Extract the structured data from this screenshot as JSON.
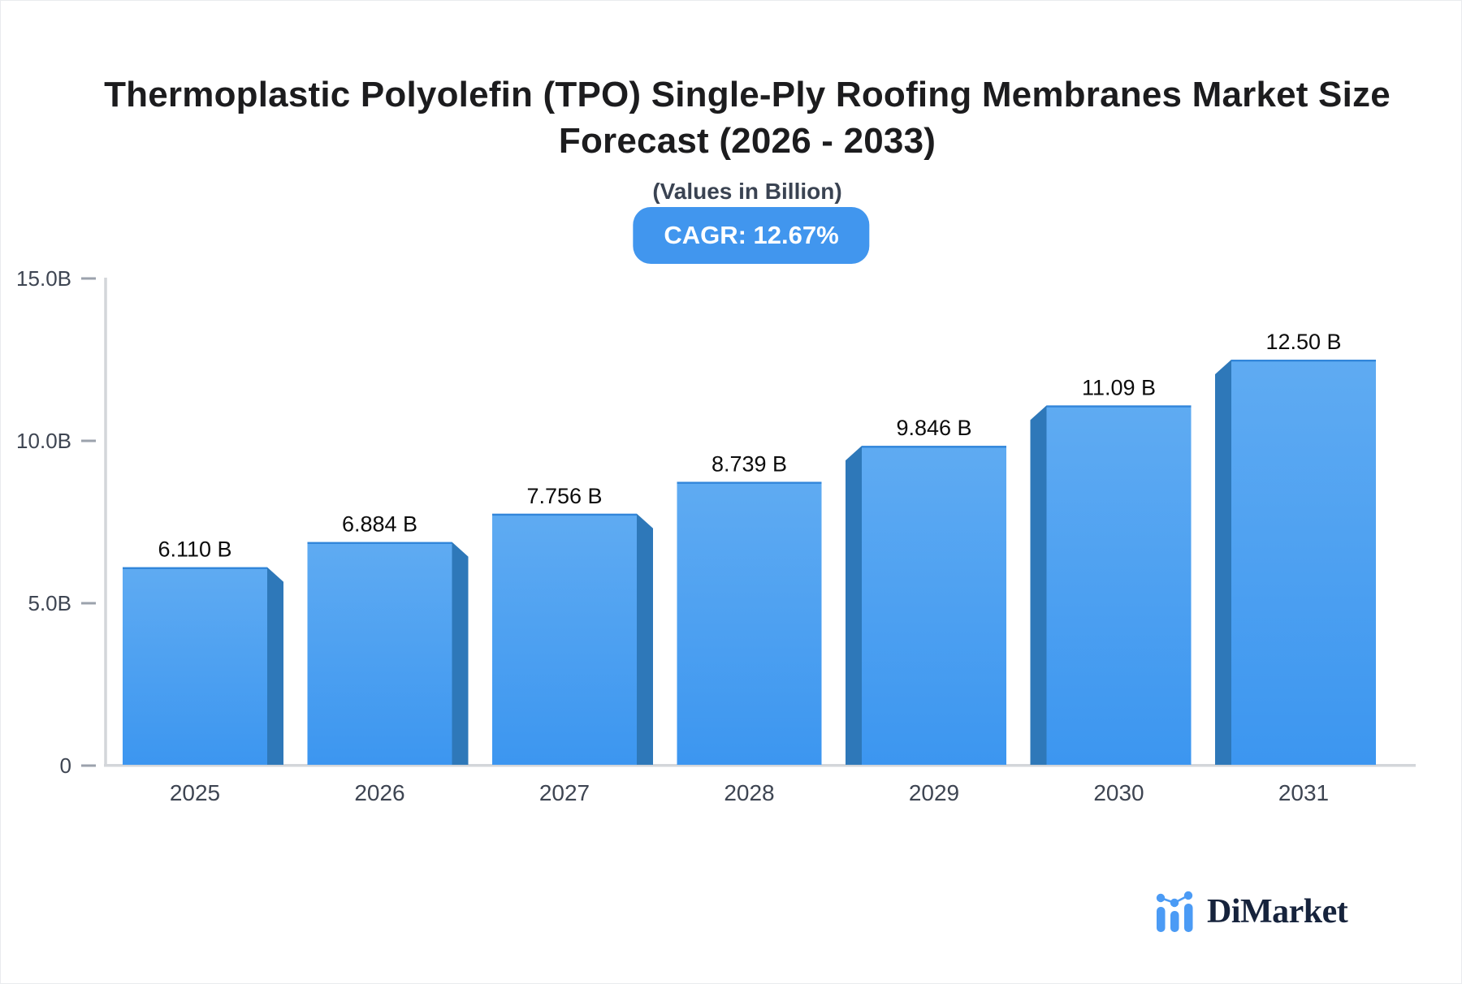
{
  "header": {
    "title_line1": "Thermoplastic Polyolefin (TPO) Single-Ply Roofing Membranes Market Size",
    "title_line2": "Forecast (2026 - 2033)",
    "subtitle": "(Values in Billion)",
    "cagr_badge": "CAGR: 12.67%"
  },
  "chart_data": {
    "type": "bar",
    "title": "Thermoplastic Polyolefin (TPO) Single-Ply Roofing Membranes Market Size Forecast (2026 - 2033)",
    "subtitle": "(Values in Billion)",
    "cagr_percent": 12.67,
    "unit": "Billion",
    "categories": [
      "2025",
      "2026",
      "2027",
      "2028",
      "2029",
      "2030",
      "2031"
    ],
    "values": [
      6.11,
      6.884,
      7.756,
      8.739,
      9.846,
      11.09,
      12.5
    ],
    "value_labels": [
      "6.110 B",
      "6.884 B",
      "7.756 B",
      "8.739 B",
      "9.846 B",
      "11.09 B",
      "12.50 B"
    ],
    "xlabel": "",
    "ylabel": "",
    "ylim": [
      0,
      15
    ],
    "yticks": [
      {
        "value": 0,
        "label": "0"
      },
      {
        "value": 5,
        "label": "5.0B"
      },
      {
        "value": 10,
        "label": "10.0B"
      },
      {
        "value": 15,
        "label": "15.0B"
      }
    ],
    "grid": false,
    "legend": false,
    "bar_color_top": "#5FABF2",
    "bar_color_bottom": "#3C96F0",
    "bar_top_edge_color": "#2B80D6",
    "bar_side_color": "#2E78B9"
  },
  "footer": {
    "logo_text": "DiMarket"
  },
  "colors": {
    "accent_blue": "#4196EE",
    "badge_text": "#FFFFFF",
    "title_text": "#1C1C1E",
    "subtitle_text": "#3A4352",
    "axis_text": "#3E4552",
    "value_label_text": "#0C0C0C",
    "axis_line": "#D3D6DA",
    "tick_mark": "#9BA2AC",
    "logo_navy": "#16233C",
    "logo_blue": "#4B9BF5",
    "background": "#FFFFFF"
  }
}
